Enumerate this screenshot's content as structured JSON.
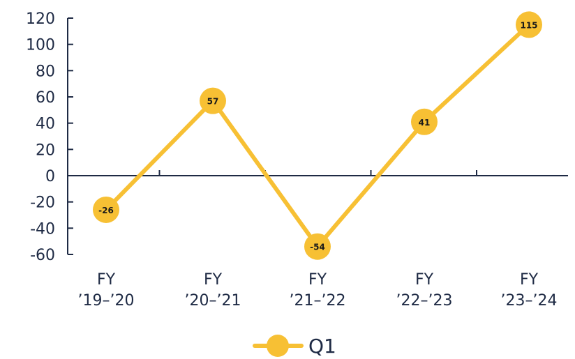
{
  "chart_data": {
    "type": "line",
    "categories": [
      [
        "FY",
        "’19–’20"
      ],
      [
        "FY",
        "’20–’21"
      ],
      [
        "FY",
        "’21–’22"
      ],
      [
        "FY",
        "’22–’23"
      ],
      [
        "FY",
        "’23–’24"
      ]
    ],
    "series": [
      {
        "name": "Q1",
        "values": [
          -26,
          57,
          -54,
          41,
          115
        ],
        "color": "#f7c034"
      }
    ],
    "data_labels": [
      "-26",
      "57",
      "-54",
      "41",
      "115"
    ],
    "yticks": [
      120,
      100,
      80,
      60,
      40,
      20,
      0,
      -20,
      -40,
      -60
    ],
    "ylim": [
      -60,
      120
    ],
    "legend": {
      "position": "bottom-center",
      "label": "Q1"
    },
    "colors": {
      "axis": "#1e2a44",
      "line": "#f7c034",
      "marker": "#f7c034"
    },
    "grid": false
  }
}
